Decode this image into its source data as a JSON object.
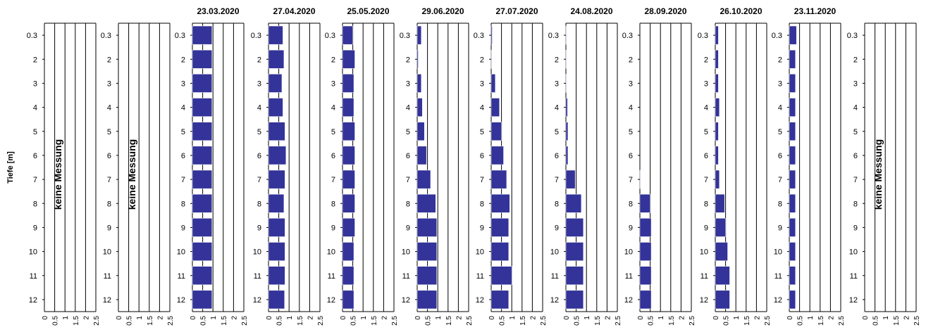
{
  "chart_data": {
    "type": "bar",
    "orientation": "horizontal",
    "ylabel": "Tiefe [m]",
    "depth_labels": [
      "0.3",
      "2",
      "3",
      "4",
      "5",
      "6",
      "7",
      "8",
      "9",
      "10",
      "11",
      "12"
    ],
    "x_ticks": [
      "0",
      "0.5",
      "1",
      "1.5",
      "2",
      "2.5"
    ],
    "xlim": [
      0,
      2.5
    ],
    "bar_color": "#333399",
    "grid": "vertical",
    "panels": [
      {
        "title": "",
        "note": "keine Messung",
        "values": []
      },
      {
        "title": "",
        "note": "keine Messung",
        "values": []
      },
      {
        "title": "23.03.2020",
        "note": "",
        "values": [
          0.95,
          0.95,
          0.95,
          0.95,
          0.95,
          0.95,
          0.95,
          0.95,
          0.95,
          0.95,
          0.95,
          0.95
        ]
      },
      {
        "title": "27.04.2020",
        "note": "",
        "values": [
          0.7,
          0.75,
          0.65,
          0.7,
          0.8,
          0.85,
          0.8,
          0.75,
          0.8,
          0.8,
          0.8,
          0.78
        ]
      },
      {
        "title": "25.05.2020",
        "note": "",
        "values": [
          0.5,
          0.6,
          0.55,
          0.55,
          0.6,
          0.6,
          0.6,
          0.6,
          0.6,
          0.55,
          0.55,
          0.55
        ]
      },
      {
        "title": "29.06.2020",
        "note": "",
        "values": [
          0.2,
          0.05,
          0.2,
          0.25,
          0.35,
          0.45,
          0.65,
          0.9,
          0.95,
          0.95,
          0.95,
          0.95
        ]
      },
      {
        "title": "27.07.2020",
        "note": "",
        "values": [
          0.05,
          0.02,
          0.2,
          0.4,
          0.5,
          0.6,
          0.75,
          0.9,
          0.85,
          0.85,
          1.0,
          0.85
        ]
      },
      {
        "title": "24.08.2020",
        "note": "",
        "values": [
          0.02,
          0.02,
          0.02,
          0.08,
          0.1,
          0.1,
          0.45,
          0.75,
          0.85,
          0.85,
          0.85,
          0.85
        ]
      },
      {
        "title": "28.09.2020",
        "note": "",
        "values": [
          0,
          0,
          0,
          0,
          0,
          0,
          0.02,
          0.5,
          0.55,
          0.55,
          0.55,
          0.55
        ]
      },
      {
        "title": "26.10.2020",
        "note": "",
        "values": [
          0.15,
          0.15,
          0.15,
          0.2,
          0.15,
          0.15,
          0.2,
          0.45,
          0.5,
          0.6,
          0.7,
          0.7
        ]
      },
      {
        "title": "23.11.2020",
        "note": "",
        "values": [
          0.35,
          0.3,
          0.3,
          0.3,
          0.3,
          0.3,
          0.3,
          0.3,
          0.3,
          0.3,
          0.3,
          0.3
        ]
      },
      {
        "title": "",
        "note": "keine Messung",
        "values": []
      }
    ]
  }
}
